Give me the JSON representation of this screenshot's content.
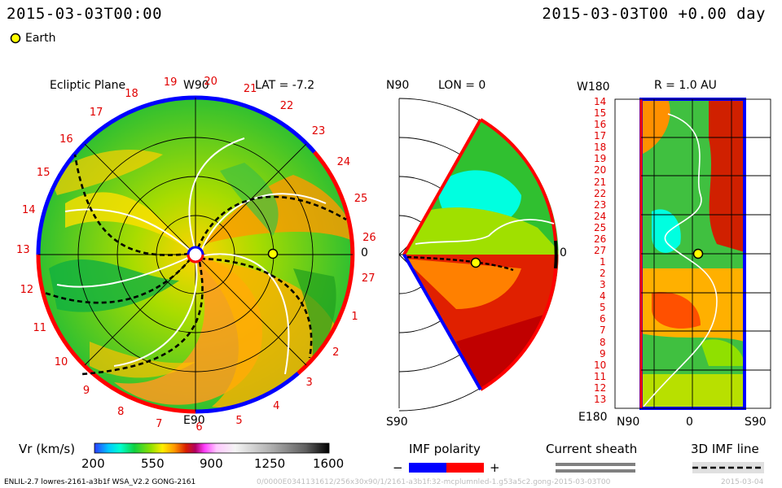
{
  "header": {
    "left_time": "2015-03-03T00:00",
    "right_time": "2015-03-03T00 +0.00 day",
    "legend_earth": "Earth"
  },
  "panels": {
    "ecliptic": {
      "title": "Ecliptic Plane",
      "top_label": "W90",
      "bottom_label": "E90",
      "right_label": "0",
      "lat_label": "LAT = -7.2",
      "sector_numbers": [
        "1",
        "2",
        "3",
        "4",
        "5",
        "6",
        "7",
        "8",
        "9",
        "10",
        "11",
        "12",
        "13",
        "14",
        "15",
        "16",
        "17",
        "18",
        "19",
        "20",
        "21",
        "22",
        "23",
        "24",
        "25",
        "26",
        "27"
      ]
    },
    "meridional": {
      "lon_label": "LON = 0",
      "top_label": "N90",
      "bottom_label": "S90",
      "right_label": "0"
    },
    "latlon": {
      "r_label": "R = 1.0 AU",
      "top_left_label": "W180",
      "bottom_left_label": "E180",
      "x_labels": [
        "N90",
        "0",
        "S90"
      ],
      "y_labels": [
        "14",
        "15",
        "16",
        "17",
        "18",
        "19",
        "20",
        "21",
        "22",
        "23",
        "24",
        "25",
        "26",
        "27",
        "1",
        "2",
        "3",
        "4",
        "5",
        "6",
        "7",
        "8",
        "9",
        "10",
        "11",
        "12",
        "13"
      ]
    }
  },
  "colorbar": {
    "title": "Vr (km/s)",
    "ticks": [
      "200",
      "550",
      "900",
      "1250",
      "1600"
    ],
    "min": 200,
    "max": 1600
  },
  "legends": {
    "imf_polarity": "IMF polarity",
    "minus": "−",
    "plus": "+",
    "current_sheath": "Current sheath",
    "imf_line": "3D IMF line"
  },
  "footer": {
    "model": "ENLIL-2.7 lowres-2161-a3b1f WSA_V2.2 GONG-2161",
    "faint": "0/0000E0341131612/256x30x90/1/2161-a3b1f:32-mcplumnled-1.g53a5c2.gong-2015-03-03T00",
    "faint_right": "2015-03-04"
  },
  "colors": {
    "positive_polarity": "#ff0000",
    "negative_polarity": "#0000ff",
    "earth": "#ffff00",
    "sector_text": "#e00000"
  },
  "chart_data": {
    "type": "heatmap",
    "quantity": "Vr (km/s)",
    "range": [
      200,
      1600
    ],
    "earth_position_AU": 1.0,
    "earth_lat_deg": -7.2,
    "earth_lon_deg": 0
  }
}
